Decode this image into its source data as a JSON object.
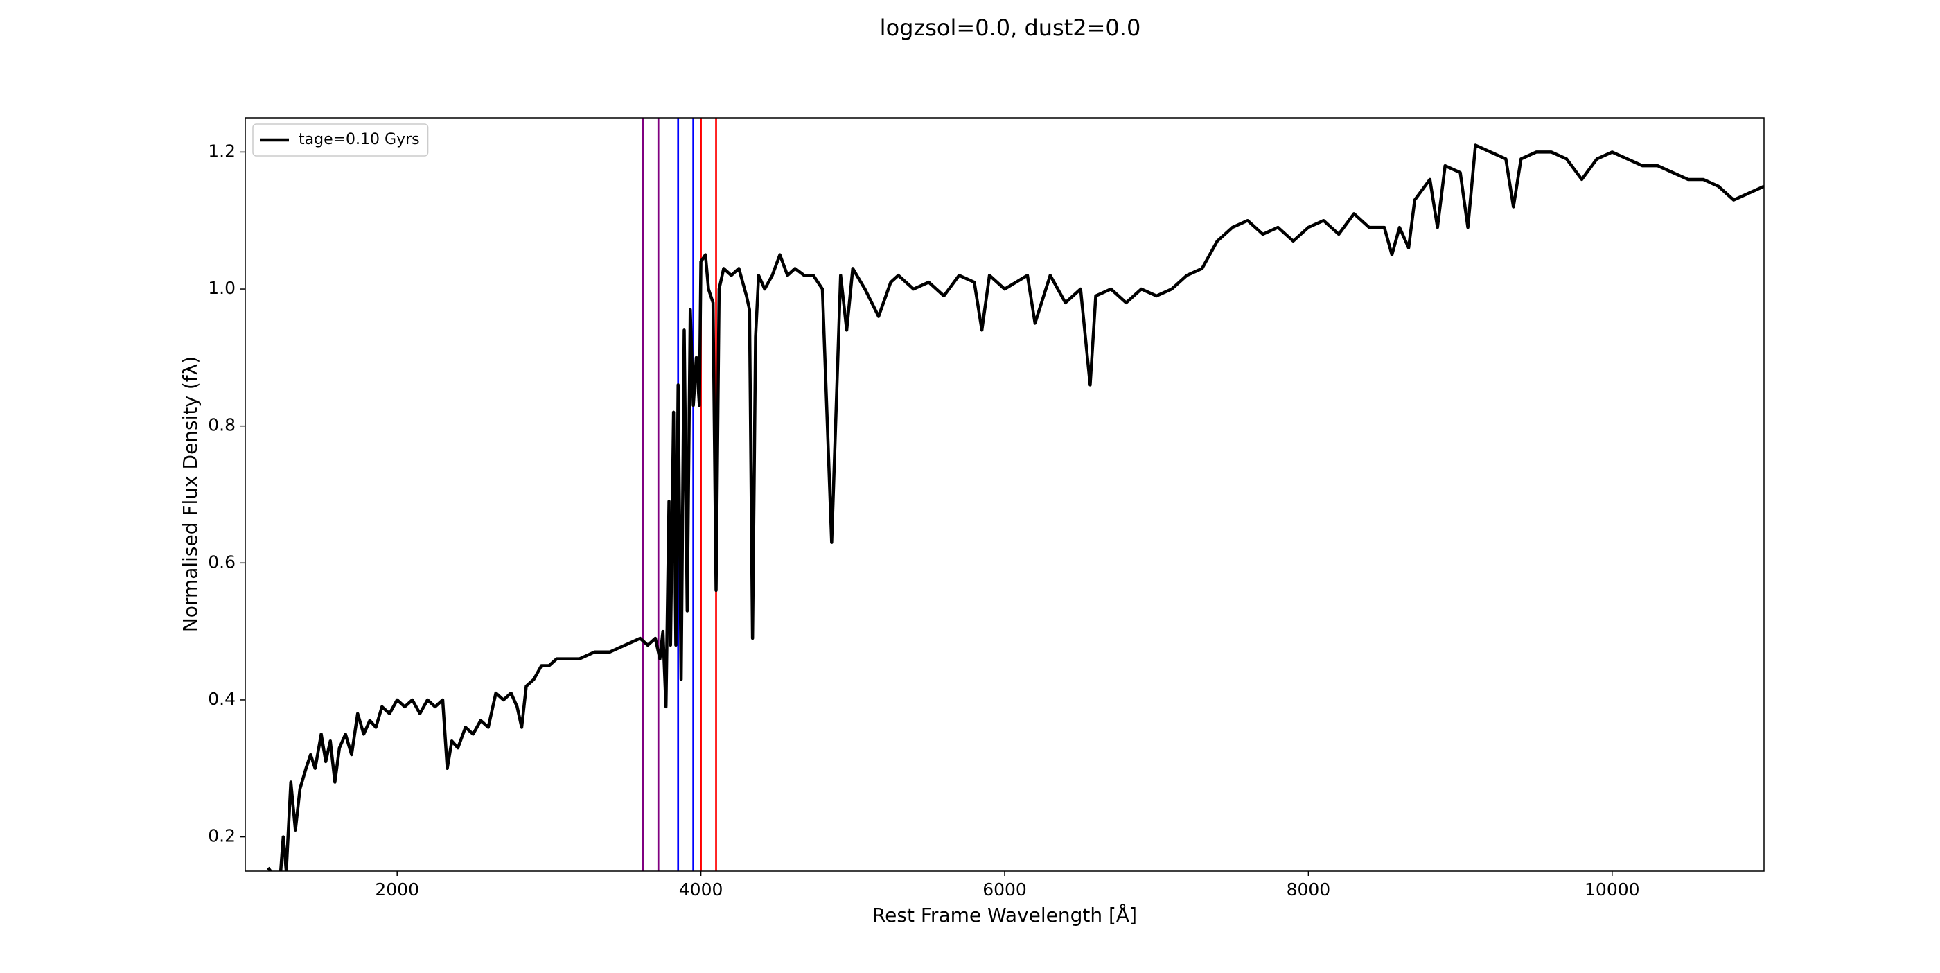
{
  "chart_data": {
    "type": "line",
    "title": "logzsol=0.0, dust2=0.0",
    "x_label": "Rest Frame Wavelength [Å]",
    "y_label": "Normalised Flux Density (fλ)",
    "xlim": [
      1000,
      11000
    ],
    "ylim": [
      0.15,
      1.25
    ],
    "xticks": [
      2000,
      4000,
      6000,
      8000,
      10000
    ],
    "yticks": [
      0.2,
      0.4,
      0.6,
      0.8,
      {
        "value": 1,
        "label": "1.0"
      },
      1.2
    ],
    "legend": "upper left",
    "vlines": [
      {
        "x": 3620,
        "color": "purple"
      },
      {
        "x": 3720,
        "color": "purple"
      },
      {
        "x": 3850,
        "color": "blue"
      },
      {
        "x": 3950,
        "color": "blue"
      },
      {
        "x": 4000,
        "color": "red"
      },
      {
        "x": 4100,
        "color": "red"
      }
    ],
    "x": [
      1150,
      1200,
      1230,
      1250,
      1270,
      1300,
      1330,
      1360,
      1400,
      1430,
      1460,
      1500,
      1530,
      1560,
      1590,
      1620,
      1660,
      1700,
      1740,
      1780,
      1820,
      1860,
      1900,
      1950,
      2000,
      2050,
      2100,
      2150,
      2200,
      2250,
      2300,
      2330,
      2360,
      2400,
      2450,
      2500,
      2550,
      2600,
      2650,
      2700,
      2750,
      2790,
      2820,
      2850,
      2900,
      2950,
      3000,
      3050,
      3100,
      3200,
      3300,
      3400,
      3500,
      3600,
      3650,
      3700,
      3730,
      3750,
      3770,
      3790,
      3800,
      3820,
      3835,
      3850,
      3870,
      3890,
      3910,
      3930,
      3950,
      3970,
      3990,
      4000,
      4030,
      4050,
      4080,
      4100,
      4120,
      4150,
      4200,
      4250,
      4300,
      4320,
      4340,
      4360,
      4380,
      4420,
      4470,
      4520,
      4570,
      4620,
      4680,
      4740,
      4800,
      4861,
      4920,
      4960,
      5000,
      5080,
      5170,
      5250,
      5300,
      5400,
      5500,
      5600,
      5700,
      5800,
      5850,
      5900,
      6000,
      6150,
      6200,
      6300,
      6400,
      6500,
      6563,
      6600,
      6700,
      6800,
      6900,
      7000,
      7100,
      7200,
      7300,
      7400,
      7500,
      7600,
      7700,
      7800,
      7900,
      8000,
      8100,
      8200,
      8300,
      8400,
      8500,
      8550,
      8600,
      8660,
      8700,
      8800,
      8850,
      8900,
      9000,
      9050,
      9100,
      9200,
      9300,
      9350,
      9400,
      9500,
      9600,
      9700,
      9800,
      9900,
      10000,
      10100,
      10200,
      10300,
      10400,
      10500,
      10600,
      10700,
      10800,
      10900,
      11000
    ],
    "series": [
      {
        "name": "tage=0.10 Gyrs",
        "color": "#000000",
        "values": [
          0.155,
          0.14,
          0.14,
          0.2,
          0.15,
          0.28,
          0.21,
          0.27,
          0.3,
          0.32,
          0.3,
          0.35,
          0.31,
          0.34,
          0.28,
          0.33,
          0.35,
          0.32,
          0.38,
          0.35,
          0.37,
          0.36,
          0.39,
          0.38,
          0.4,
          0.39,
          0.4,
          0.38,
          0.4,
          0.39,
          0.4,
          0.3,
          0.34,
          0.33,
          0.36,
          0.35,
          0.37,
          0.36,
          0.41,
          0.4,
          0.41,
          0.39,
          0.36,
          0.42,
          0.43,
          0.45,
          0.45,
          0.46,
          0.46,
          0.46,
          0.47,
          0.47,
          0.48,
          0.49,
          0.48,
          0.49,
          0.46,
          0.5,
          0.39,
          0.69,
          0.48,
          0.82,
          0.48,
          0.86,
          0.43,
          0.94,
          0.53,
          0.97,
          0.83,
          0.9,
          0.83,
          1.04,
          1.05,
          1.0,
          0.98,
          0.56,
          1.0,
          1.03,
          1.02,
          1.03,
          0.99,
          0.97,
          0.49,
          0.93,
          1.02,
          1.0,
          1.02,
          1.05,
          1.02,
          1.03,
          1.02,
          1.02,
          1.0,
          0.63,
          1.02,
          0.94,
          1.03,
          1.0,
          0.96,
          1.01,
          1.02,
          1.0,
          1.01,
          0.99,
          1.02,
          1.01,
          0.94,
          1.02,
          1.0,
          1.02,
          0.95,
          1.02,
          0.98,
          1.0,
          0.86,
          0.99,
          1.0,
          0.98,
          1.0,
          0.99,
          1.0,
          1.02,
          1.03,
          1.07,
          1.09,
          1.1,
          1.08,
          1.09,
          1.07,
          1.09,
          1.1,
          1.08,
          1.11,
          1.09,
          1.09,
          1.05,
          1.09,
          1.06,
          1.13,
          1.16,
          1.09,
          1.18,
          1.17,
          1.09,
          1.21,
          1.2,
          1.19,
          1.12,
          1.19,
          1.2,
          1.2,
          1.19,
          1.16,
          1.19,
          1.2,
          1.19,
          1.18,
          1.18,
          1.17,
          1.16,
          1.16,
          1.15,
          1.13,
          1.14,
          1.15
        ]
      }
    ]
  }
}
